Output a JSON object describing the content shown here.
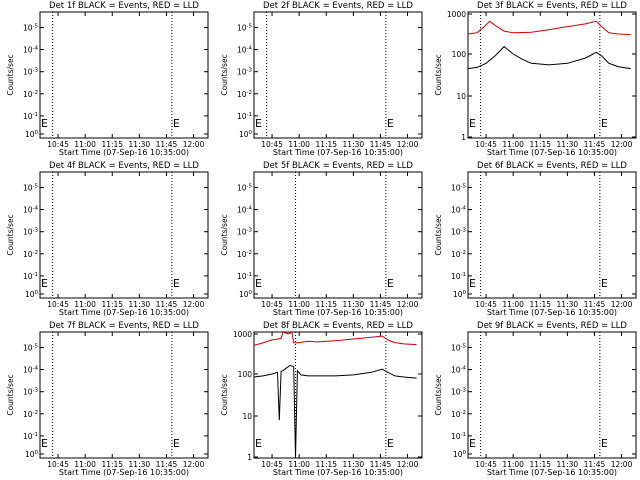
{
  "legend_colors": {
    "events": "#000000",
    "lld": "#cc0000"
  },
  "chart_data": [
    {
      "type": "line",
      "title": "Det 1f BLACK = Events, RED = LLD",
      "xlabel": "Start Time (07-Sep-16 10:35:00)",
      "ylabel": "Counts/sec",
      "x_ticks": [
        "10:45",
        "11:00",
        "11:15",
        "11:30",
        "11:45",
        "12:00"
      ],
      "y_ticks": [
        "10^0",
        "10^-1",
        "10^-2",
        "10^-3",
        "10^-4",
        "10^-5"
      ],
      "markers": [
        {
          "label": "E",
          "x": "10:35"
        },
        {
          "label": "E",
          "x": "11:48"
        }
      ],
      "x_dotted_lines": [
        "10:42",
        "11:48"
      ],
      "series": []
    },
    {
      "type": "line",
      "title": "Det 2f BLACK = Events, RED = LLD",
      "xlabel": "Start Time (07-Sep-16 10:35:00)",
      "ylabel": "Counts/sec",
      "x_ticks": [
        "10:45",
        "11:00",
        "11:15",
        "11:30",
        "11:45",
        "12:00"
      ],
      "y_ticks": [
        "10^0",
        "10^-1",
        "10^-2",
        "10^-3",
        "10^-4",
        "10^-5"
      ],
      "markers": [
        {
          "label": "E",
          "x": "10:35"
        },
        {
          "label": "E",
          "x": "11:48"
        }
      ],
      "x_dotted_lines": [
        "10:42",
        "11:48"
      ],
      "series": []
    },
    {
      "type": "line",
      "title": "Det 3f BLACK = Events, RED = LLD",
      "xlabel": "Start Time (07-Sep-16 10:35:00)",
      "ylabel": "Counts/sec",
      "x_ticks": [
        "10:45",
        "11:00",
        "11:15",
        "11:30",
        "11:45",
        "12:00"
      ],
      "y_ticks": [
        "1",
        "10",
        "100",
        "1000"
      ],
      "ylog": true,
      "markers": [
        {
          "label": "E",
          "x": "10:35"
        },
        {
          "label": "E",
          "x": "11:48"
        }
      ],
      "x_dotted_lines": [
        "10:42",
        "11:48"
      ],
      "series": [
        {
          "color": "#cc0000",
          "x": [
            "10:35",
            "10:40",
            "10:44",
            "10:47",
            "10:50",
            "10:55",
            "11:00",
            "11:10",
            "11:20",
            "11:30",
            "11:40",
            "11:46",
            "11:49",
            "11:53",
            "11:58",
            "12:05"
          ],
          "y": [
            300,
            320,
            450,
            600,
            480,
            350,
            320,
            330,
            380,
            450,
            520,
            600,
            450,
            320,
            300,
            290
          ]
        },
        {
          "color": "#000000",
          "x": [
            "10:35",
            "10:40",
            "10:45",
            "10:50",
            "10:55",
            "11:00",
            "11:05",
            "11:10",
            "11:20",
            "11:30",
            "11:40",
            "11:46",
            "11:49",
            "11:53",
            "11:58",
            "12:05"
          ],
          "y": [
            45,
            48,
            60,
            90,
            150,
            100,
            75,
            60,
            55,
            60,
            80,
            110,
            90,
            60,
            50,
            45
          ]
        }
      ]
    },
    {
      "type": "line",
      "title": "Det 4f BLACK = Events, RED = LLD",
      "xlabel": "Start Time (07-Sep-16 10:35:00)",
      "ylabel": "Counts/sec",
      "x_ticks": [
        "10:45",
        "11:00",
        "11:15",
        "11:30",
        "11:45",
        "12:00"
      ],
      "y_ticks": [
        "10^0",
        "10^-1",
        "10^-2",
        "10^-3",
        "10^-4",
        "10^-5"
      ],
      "markers": [
        {
          "label": "E",
          "x": "10:35"
        },
        {
          "label": "E",
          "x": "11:48"
        }
      ],
      "x_dotted_lines": [
        "10:42",
        "11:48"
      ],
      "series": []
    },
    {
      "type": "line",
      "title": "Det 5f BLACK = Events, RED = LLD",
      "xlabel": "Start Time (07-Sep-16 10:35:00)",
      "ylabel": "Counts/sec",
      "x_ticks": [
        "10:45",
        "11:00",
        "11:15",
        "11:30",
        "11:45",
        "12:00"
      ],
      "y_ticks": [
        "10^0",
        "10^-1",
        "10^-2",
        "10^-3",
        "10^-4",
        "10^-5"
      ],
      "markers": [
        {
          "label": "E",
          "x": "10:35"
        },
        {
          "label": "E",
          "x": "11:48"
        }
      ],
      "x_dotted_lines": [
        "10:58",
        "11:48"
      ],
      "series": []
    },
    {
      "type": "line",
      "title": "Det 6f BLACK = Events, RED = LLD",
      "xlabel": "Start Time (07-Sep-16 10:35:00)",
      "ylabel": "Counts/sec",
      "x_ticks": [
        "10:45",
        "11:00",
        "11:15",
        "11:30",
        "11:45",
        "12:00"
      ],
      "y_ticks": [
        "10^0",
        "10^-1",
        "10^-2",
        "10^-3",
        "10^-4",
        "10^-5"
      ],
      "markers": [
        {
          "label": "E",
          "x": "10:35"
        },
        {
          "label": "E",
          "x": "11:48"
        }
      ],
      "x_dotted_lines": [
        "10:42",
        "11:48"
      ],
      "series": []
    },
    {
      "type": "line",
      "title": "Det 7f BLACK = Events, RED = LLD",
      "xlabel": "Start Time (07-Sep-16 10:35:00)",
      "ylabel": "Counts/sec",
      "x_ticks": [
        "10:45",
        "11:00",
        "11:15",
        "11:30",
        "11:45",
        "12:00"
      ],
      "y_ticks": [
        "10^0",
        "10^-1",
        "10^-2",
        "10^-3",
        "10^-4",
        "10^-5"
      ],
      "markers": [
        {
          "label": "E",
          "x": "10:35"
        },
        {
          "label": "E",
          "x": "11:48"
        }
      ],
      "x_dotted_lines": [
        "10:42",
        "11:48"
      ],
      "series": []
    },
    {
      "type": "line",
      "title": "Det 8f BLACK = Events, RED = LLD",
      "xlabel": "Start Time (07-Sep-16 10:35:00)",
      "ylabel": "Counts/sec",
      "x_ticks": [
        "10:45",
        "11:00",
        "11:15",
        "11:30",
        "11:45",
        "12:00"
      ],
      "y_ticks": [
        "1",
        "10",
        "100",
        "1000"
      ],
      "ylog": true,
      "markers": [
        {
          "label": "E",
          "x": "10:35"
        },
        {
          "label": "E",
          "x": "11:48"
        }
      ],
      "x_dotted_lines": [
        "10:58",
        "11:48"
      ],
      "series": [
        {
          "color": "#cc0000",
          "x": [
            "10:35",
            "10:40",
            "10:45",
            "10:50",
            "10:51",
            "10:54",
            "10:56",
            "10:57",
            "11:00",
            "11:05",
            "11:10",
            "11:20",
            "11:30",
            "11:40",
            "11:46",
            "11:49",
            "11:53",
            "11:58",
            "12:05"
          ],
          "y": [
            480,
            550,
            650,
            700,
            1000,
            900,
            1000,
            550,
            560,
            600,
            580,
            620,
            680,
            750,
            800,
            650,
            560,
            520,
            500
          ]
        },
        {
          "color": "#000000",
          "x": [
            "10:35",
            "10:40",
            "10:45",
            "10:48",
            "10:49",
            "10:50",
            "10:51",
            "10:52",
            "10:55",
            "10:57",
            "10:58",
            "10:59",
            "11:01",
            "11:05",
            "11:10",
            "11:20",
            "11:30",
            "11:40",
            "11:46",
            "11:49",
            "11:53",
            "11:58",
            "12:05"
          ],
          "y": [
            85,
            90,
            100,
            110,
            8,
            115,
            120,
            130,
            160,
            150,
            1,
            120,
            95,
            90,
            90,
            90,
            95,
            110,
            130,
            110,
            90,
            85,
            80
          ]
        }
      ]
    },
    {
      "type": "line",
      "title": "Det 9f BLACK = Events, RED = LLD",
      "xlabel": "Start Time (07-Sep-16 10:35:00)",
      "ylabel": "Counts/sec",
      "x_ticks": [
        "10:45",
        "11:00",
        "11:15",
        "11:30",
        "11:45",
        "12:00"
      ],
      "y_ticks": [
        "10^0",
        "10^-1",
        "10^-2",
        "10^-3",
        "10^-4",
        "10^-5"
      ],
      "markers": [
        {
          "label": "E",
          "x": "10:35"
        },
        {
          "label": "E",
          "x": "11:48"
        }
      ],
      "x_dotted_lines": [
        "10:42",
        "11:48"
      ],
      "series": []
    }
  ]
}
